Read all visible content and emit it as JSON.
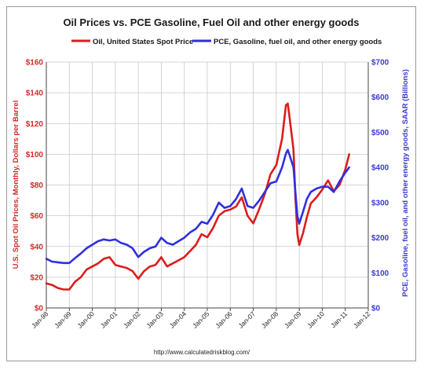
{
  "chart_data": {
    "type": "line",
    "title": "Oil Prices vs. PCE Gasoline, Fuel Oil and other energy goods",
    "ylabel_left": "U.S. Spot Oil Prices, Monthly, Dollars per Barrel",
    "ylabel_right": "PCE, Gasoline, fuel oil, and other energy goods, SAAR (Billions)",
    "source": "http://www.calculatedriskblog.com/",
    "y_left_ticks": [
      "$0",
      "$20",
      "$40",
      "$60",
      "$80",
      "$100",
      "$120",
      "$140",
      "$160"
    ],
    "y_right_ticks": [
      "$0",
      "$100",
      "$200",
      "$300",
      "$400",
      "$500",
      "$600",
      "$700"
    ],
    "ylim_left": [
      0,
      160
    ],
    "ylim_right": [
      0,
      700
    ],
    "x_ticks": [
      "Jan-98",
      "Jan-99",
      "Jan-00",
      "Jan-01",
      "Jan-02",
      "Jan-03",
      "Jan-04",
      "Jan-05",
      "Jan-06",
      "Jan-07",
      "Jan-08",
      "Jan-09",
      "Jan-10",
      "Jan-11",
      "Jan-12"
    ],
    "xlim": [
      1998.0,
      2012.0
    ],
    "grid": true,
    "legend_position": "top",
    "series": [
      {
        "name": "Oil, United States Spot Price",
        "axis": "left",
        "color": "#dd1c1c",
        "x": [
          1998.0,
          1998.25,
          1998.5,
          1998.75,
          1999.0,
          1999.25,
          1999.5,
          1999.75,
          2000.0,
          2000.25,
          2000.5,
          2000.75,
          2001.0,
          2001.25,
          2001.5,
          2001.75,
          2002.0,
          2002.25,
          2002.5,
          2002.75,
          2003.0,
          2003.25,
          2003.5,
          2003.75,
          2004.0,
          2004.25,
          2004.5,
          2004.75,
          2005.0,
          2005.25,
          2005.5,
          2005.75,
          2006.0,
          2006.25,
          2006.5,
          2006.75,
          2007.0,
          2007.25,
          2007.5,
          2007.75,
          2008.0,
          2008.25,
          2008.42,
          2008.5,
          2008.58,
          2008.75,
          2008.83,
          2008.92,
          2009.0,
          2009.17,
          2009.33,
          2009.5,
          2009.75,
          2010.0,
          2010.25,
          2010.5,
          2010.75,
          2011.0,
          2011.17
        ],
        "values": [
          16,
          15,
          13,
          12,
          12,
          17,
          20,
          25,
          27,
          29,
          32,
          33,
          28,
          27,
          26,
          24,
          19,
          24,
          27,
          28,
          33,
          27,
          29,
          31,
          33,
          37,
          41,
          48,
          46,
          52,
          60,
          63,
          64,
          66,
          72,
          60,
          55,
          64,
          74,
          87,
          93,
          110,
          132,
          133,
          124,
          103,
          72,
          48,
          41,
          49,
          59,
          68,
          72,
          77,
          83,
          76,
          80,
          90,
          100
        ]
      },
      {
        "name": "PCE, Gasoline, fuel oil, and other energy goods",
        "axis": "right",
        "color": "#2f2fe0",
        "x": [
          1998.0,
          1998.25,
          1998.5,
          1998.75,
          1999.0,
          1999.25,
          1999.5,
          1999.75,
          2000.0,
          2000.25,
          2000.5,
          2000.75,
          2001.0,
          2001.25,
          2001.5,
          2001.75,
          2002.0,
          2002.25,
          2002.5,
          2002.75,
          2003.0,
          2003.25,
          2003.5,
          2003.75,
          2004.0,
          2004.25,
          2004.5,
          2004.75,
          2005.0,
          2005.25,
          2005.5,
          2005.75,
          2006.0,
          2006.25,
          2006.5,
          2006.75,
          2007.0,
          2007.25,
          2007.5,
          2007.75,
          2008.0,
          2008.25,
          2008.42,
          2008.5,
          2008.58,
          2008.75,
          2008.83,
          2008.92,
          2009.0,
          2009.17,
          2009.33,
          2009.5,
          2009.75,
          2010.0,
          2010.25,
          2010.5,
          2010.75,
          2011.0,
          2011.17
        ],
        "values": [
          140,
          132,
          130,
          128,
          128,
          142,
          155,
          170,
          180,
          190,
          195,
          192,
          195,
          185,
          180,
          170,
          145,
          160,
          170,
          175,
          200,
          185,
          180,
          190,
          200,
          215,
          225,
          245,
          240,
          265,
          300,
          285,
          290,
          310,
          340,
          290,
          285,
          305,
          330,
          355,
          360,
          400,
          440,
          450,
          435,
          400,
          330,
          260,
          240,
          275,
          310,
          330,
          340,
          345,
          345,
          330,
          360,
          385,
          400
        ]
      }
    ]
  }
}
